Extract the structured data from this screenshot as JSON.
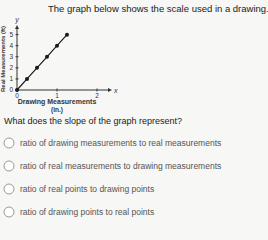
{
  "heading": "The graph below shows the scale used in a drawing.",
  "chart_data": {
    "type": "line",
    "x_label": "Drawing Measurements",
    "x_label_unit": "(in.)",
    "y_label": "Real Measurements (ft)",
    "axis_names": {
      "x": "x",
      "y": "y"
    },
    "x": [
      0,
      0.25,
      0.5,
      0.75,
      1,
      1.25
    ],
    "values": [
      0,
      1,
      2,
      3,
      4,
      5
    ],
    "color": "#1a1a1a",
    "marker": "circle",
    "xlim": [
      0,
      2.3
    ],
    "xticks": [
      0,
      1,
      2
    ],
    "ylim": [
      0,
      5.6
    ],
    "yticks": [
      0,
      1,
      2,
      3,
      4,
      5
    ],
    "grid": false
  },
  "question": "What does the slope of the graph represent?",
  "options": [
    "ratio of drawing measurements to real measurements",
    "ratio of real measurements to drawing measurements",
    "ratio of real points to drawing points",
    "ratio of drawing points to real points"
  ]
}
